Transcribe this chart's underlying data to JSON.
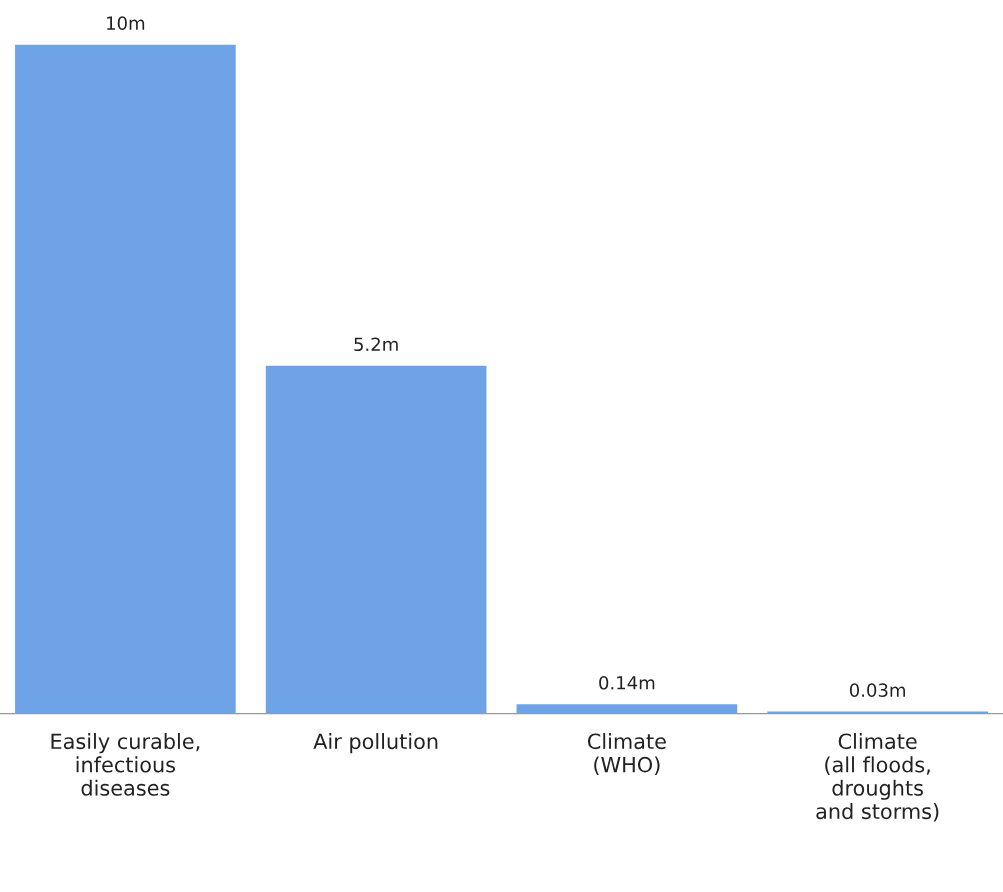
{
  "chart_data": {
    "type": "bar",
    "categories": [
      "Easily curable,\ninfectious\ndiseases",
      "Air pollution",
      "Climate\n(WHO)",
      "Climate\n(all floods,\ndroughts\nand storms)"
    ],
    "values": [
      10,
      5.2,
      0.14,
      0.03
    ],
    "value_labels": [
      "10m",
      "5.2m",
      "0.14m",
      "0.03m"
    ],
    "color": "#6fa3e8",
    "grid": false,
    "legend": false
  }
}
